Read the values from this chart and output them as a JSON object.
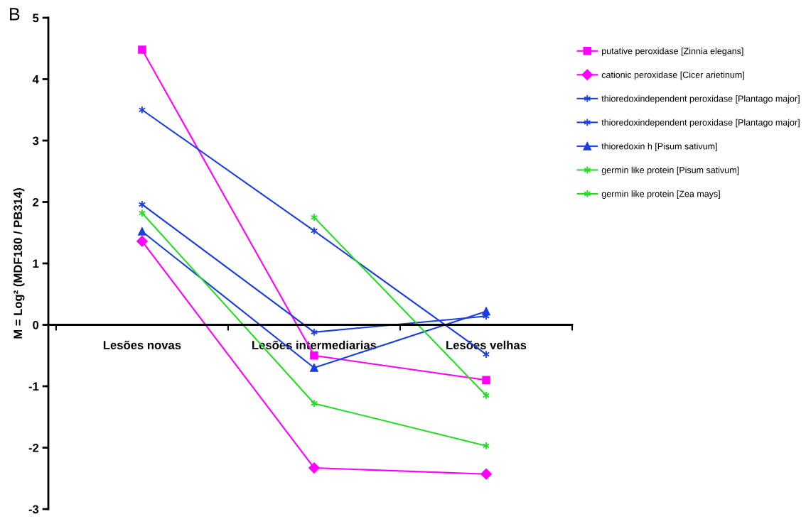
{
  "chart_data": {
    "type": "line",
    "title": "B",
    "ylabel": "M = Log² (MDF180 / PB314)",
    "categories": [
      "Lesões novas",
      "Lesões intermediarias",
      "Lesões velhas"
    ],
    "series": [
      {
        "name": "putative peroxidase [Zinnia elegans]",
        "color": "#ff00ff",
        "marker": "square",
        "values": [
          4.48,
          -0.5,
          -0.9
        ]
      },
      {
        "name": "cationic peroxidase [Cicer arietinum]",
        "color": "#ff00ff",
        "marker": "diamond",
        "values": [
          1.36,
          -2.33,
          -2.43
        ]
      },
      {
        "name": "thioredoxindependent peroxidase [Plantago major]",
        "color": "#1a3ee0",
        "marker": "cross",
        "values": [
          3.5,
          1.53,
          -0.48
        ]
      },
      {
        "name": "thioredoxindependent peroxidase [Plantago major]",
        "color": "#1a3ee0",
        "marker": "cross",
        "values": [
          1.96,
          -0.12,
          0.14
        ]
      },
      {
        "name": "thioredoxin h [Pisum sativum]",
        "color": "#1a3ee0",
        "marker": "triangle",
        "values": [
          1.52,
          -0.7,
          0.22
        ]
      },
      {
        "name": "germin like protein [Pisum sativum]",
        "color": "#22dd22",
        "marker": "cross",
        "values": [
          1.82,
          -1.28,
          -1.97
        ]
      },
      {
        "name": "germin like protein [Zea mays]",
        "color": "#22dd22",
        "marker": "cross",
        "values": [
          null,
          1.75,
          -1.15
        ]
      }
    ],
    "ylim": [
      -3,
      5
    ],
    "yticks": [
      -3,
      -2,
      -1,
      0,
      1,
      2,
      3,
      4,
      5
    ],
    "grid": false,
    "legend": "top right"
  }
}
